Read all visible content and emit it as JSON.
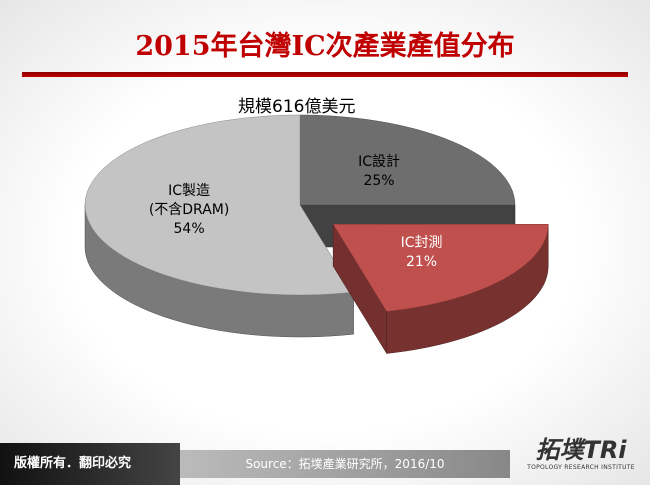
{
  "chart_data": {
    "type": "pie3d",
    "title": "2015年台灣IC次產業產值分布",
    "subtitle": "規模616億美元",
    "categories": [
      "IC設計",
      "IC封測",
      "IC製造\n(不含DRAM)"
    ],
    "values": [
      25,
      21,
      54
    ],
    "value_labels": [
      "25%",
      "21%",
      "54%"
    ],
    "colors": [
      "#6e6e6e",
      "#c0504d",
      "#c4c4c4"
    ],
    "exploded": [
      false,
      true,
      false
    ]
  },
  "footer": {
    "copyright": "版權所有．翻印必究",
    "source": "Source：拓墣產業研究所，2016/10",
    "logo": "拓墣TRi",
    "logo_subtitle": "TOPOLOGY RESEARCH INSTITUTE"
  }
}
